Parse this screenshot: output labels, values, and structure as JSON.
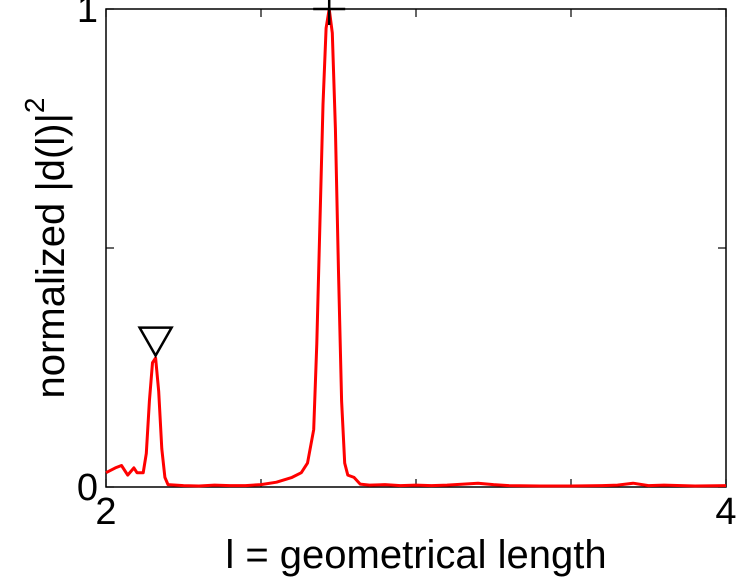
{
  "chart_data": {
    "type": "line",
    "xlabel": "l = geometrical length",
    "ylabel": "normalized |d(l)|",
    "ylabel_exponent": "2",
    "xlim": [
      2,
      4
    ],
    "ylim": [
      0,
      1
    ],
    "x_ticks": [
      2,
      2.5,
      3,
      3.5,
      4
    ],
    "x_tick_labels": [
      "2",
      "",
      "",
      "",
      "4"
    ],
    "y_ticks": [
      0,
      0.5,
      1
    ],
    "y_tick_labels": [
      "0",
      "",
      "1"
    ],
    "grid": false,
    "legend": "none",
    "colors": {
      "series": "#ff0000",
      "markers": "#000000",
      "axes": "#000000"
    },
    "series": [
      {
        "color": "#ff0000",
        "points": [
          [
            2.0,
            0.03
          ],
          [
            2.03,
            0.04
          ],
          [
            2.05,
            0.045
          ],
          [
            2.07,
            0.025
          ],
          [
            2.09,
            0.04
          ],
          [
            2.1,
            0.03
          ],
          [
            2.12,
            0.03
          ],
          [
            2.13,
            0.07
          ],
          [
            2.14,
            0.18
          ],
          [
            2.15,
            0.26
          ],
          [
            2.16,
            0.27
          ],
          [
            2.17,
            0.2
          ],
          [
            2.18,
            0.08
          ],
          [
            2.19,
            0.02
          ],
          [
            2.2,
            0.005
          ],
          [
            2.25,
            0.003
          ],
          [
            2.3,
            0.002
          ],
          [
            2.35,
            0.004
          ],
          [
            2.4,
            0.003
          ],
          [
            2.45,
            0.003
          ],
          [
            2.5,
            0.005
          ],
          [
            2.55,
            0.01
          ],
          [
            2.6,
            0.02
          ],
          [
            2.63,
            0.03
          ],
          [
            2.65,
            0.05
          ],
          [
            2.67,
            0.12
          ],
          [
            2.68,
            0.3
          ],
          [
            2.69,
            0.55
          ],
          [
            2.7,
            0.8
          ],
          [
            2.71,
            0.96
          ],
          [
            2.72,
            1.0
          ],
          [
            2.73,
            0.95
          ],
          [
            2.74,
            0.75
          ],
          [
            2.75,
            0.45
          ],
          [
            2.76,
            0.18
          ],
          [
            2.77,
            0.05
          ],
          [
            2.78,
            0.025
          ],
          [
            2.8,
            0.02
          ],
          [
            2.82,
            0.006
          ],
          [
            2.85,
            0.004
          ],
          [
            2.9,
            0.005
          ],
          [
            2.95,
            0.003
          ],
          [
            3.0,
            0.004
          ],
          [
            3.05,
            0.003
          ],
          [
            3.1,
            0.004
          ],
          [
            3.2,
            0.008
          ],
          [
            3.25,
            0.005
          ],
          [
            3.3,
            0.003
          ],
          [
            3.4,
            0.002
          ],
          [
            3.5,
            0.002
          ],
          [
            3.6,
            0.003
          ],
          [
            3.65,
            0.004
          ],
          [
            3.7,
            0.008
          ],
          [
            3.75,
            0.003
          ],
          [
            3.8,
            0.004
          ],
          [
            3.9,
            0.002
          ],
          [
            4.0,
            0.003
          ]
        ]
      }
    ],
    "markers": [
      {
        "symbol": "triangle-down",
        "x": 2.16,
        "y": 0.3
      },
      {
        "symbol": "plus",
        "x": 2.72,
        "y": 1.0
      }
    ]
  }
}
